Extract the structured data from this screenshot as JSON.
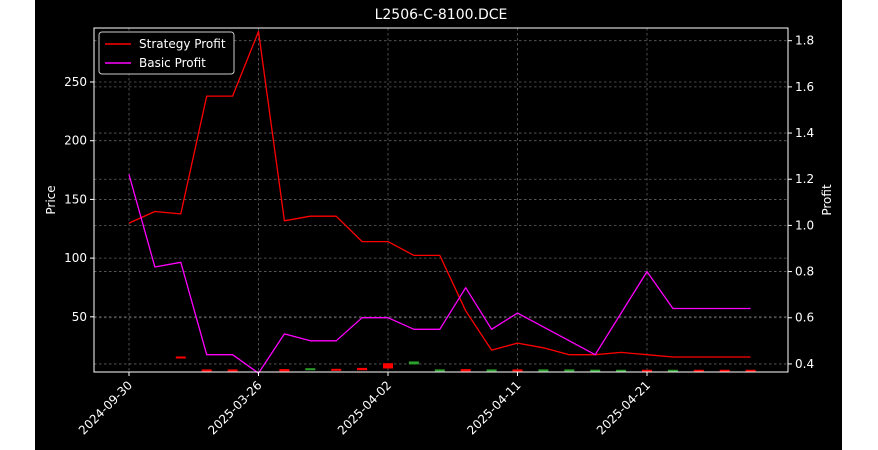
{
  "chart_data": {
    "type": "line",
    "title": "L2506-C-8100.DCE",
    "ylabel_left": "Price",
    "ylabel_right": "Profit",
    "x_tick_labels": [
      "2024-09-30",
      "2025-03-26",
      "2025-04-02",
      "2025-04-11",
      "2025-04-21"
    ],
    "x_tick_index": [
      0,
      5,
      10,
      15,
      20
    ],
    "n_points": 25,
    "left_yticks": [
      50,
      100,
      150,
      200,
      250
    ],
    "left_ylim": [
      3,
      296
    ],
    "right_yticks": [
      "0.4",
      "0.6",
      "0.8",
      "1.0",
      "1.2",
      "1.4",
      "1.6",
      "1.8"
    ],
    "right_ylim": [
      0.365,
      1.855
    ],
    "grid": true,
    "legend_position": "top-left",
    "series": [
      {
        "name": "Strategy Profit",
        "axis": "right",
        "color": "#ff0000",
        "values": [
          1.01,
          1.06,
          1.05,
          1.56,
          1.56,
          1.84,
          1.02,
          1.04,
          1.04,
          0.93,
          0.93,
          0.87,
          0.87,
          0.63,
          0.46,
          0.49,
          0.47,
          0.44,
          0.44,
          0.45,
          0.44,
          0.43,
          0.43,
          0.43,
          0.43
        ]
      },
      {
        "name": "Basic Profit",
        "axis": "right",
        "color": "#ff00ff",
        "values": [
          1.22,
          0.82,
          0.84,
          0.44,
          0.44,
          0.36,
          0.53,
          0.5,
          0.5,
          0.6,
          0.6,
          0.55,
          0.55,
          0.73,
          0.55,
          0.62,
          null,
          null,
          0.44,
          null,
          0.8,
          0.64,
          0.64,
          0.64,
          0.64
        ]
      }
    ],
    "candlesticks": {
      "axis": "left",
      "up_color": "#2ca02c",
      "down_color": "#ff0000",
      "items": [
        {
          "i": 2,
          "open": 15.5,
          "close": 14.5,
          "dir": "down"
        },
        {
          "i": 3,
          "open": 4.5,
          "close": 3.5,
          "dir": "down"
        },
        {
          "i": 4,
          "open": 4.5,
          "close": 3.5,
          "dir": "down"
        },
        {
          "i": 6,
          "open": 5.5,
          "close": 3.5,
          "dir": "down"
        },
        {
          "i": 7,
          "open": 4.5,
          "close": 5.5,
          "dir": "up"
        },
        {
          "i": 8,
          "open": 5.0,
          "close": 4.0,
          "dir": "down"
        },
        {
          "i": 9,
          "open": 6.5,
          "close": 4.5,
          "dir": "down"
        },
        {
          "i": 10,
          "open": 10.5,
          "close": 6.0,
          "dir": "down"
        },
        {
          "i": 11,
          "open": 9.5,
          "close": 12.0,
          "dir": "up"
        },
        {
          "i": 12,
          "open": 3.5,
          "close": 4.3,
          "dir": "up"
        },
        {
          "i": 13,
          "open": 5.5,
          "close": 3.5,
          "dir": "down"
        },
        {
          "i": 14,
          "open": 3.5,
          "close": 4.5,
          "dir": "up"
        },
        {
          "i": 15,
          "open": 4.5,
          "close": 3.5,
          "dir": "down"
        },
        {
          "i": 16,
          "open": 3.5,
          "close": 5.0,
          "dir": "up"
        },
        {
          "i": 17,
          "open": 3.5,
          "close": 4.3,
          "dir": "up"
        },
        {
          "i": 18,
          "open": 3.3,
          "close": 4.0,
          "dir": "up"
        },
        {
          "i": 19,
          "open": 3.2,
          "close": 3.6,
          "dir": "up"
        },
        {
          "i": 20,
          "open": 3.8,
          "close": 3.2,
          "dir": "down"
        },
        {
          "i": 21,
          "open": 3.2,
          "close": 3.6,
          "dir": "up"
        },
        {
          "i": 22,
          "open": 3.8,
          "close": 3.2,
          "dir": "down"
        },
        {
          "i": 23,
          "open": 3.8,
          "close": 3.2,
          "dir": "down"
        },
        {
          "i": 24,
          "open": 3.8,
          "close": 3.2,
          "dir": "down"
        }
      ]
    }
  }
}
